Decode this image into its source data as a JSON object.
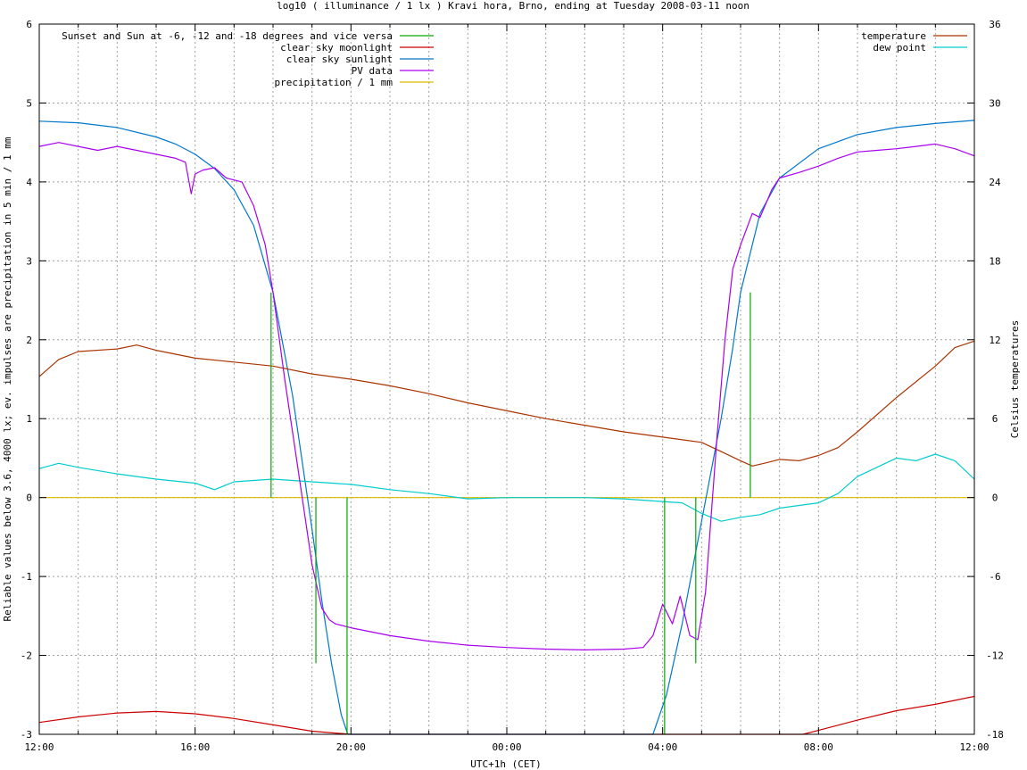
{
  "chart_data": {
    "type": "line",
    "title": "log10 ( illuminance / 1 lx ) Kravi hora, Brno, ending at Tuesday 2008-03-11 noon",
    "xlabel": "UTC+1h (CET)",
    "ylabel": "Reliable values below 3.6, 4000 lx; ev. impulses are precipitation in 5 min / 1 mm",
    "y2label": "Celsius temperatures",
    "xlim": [
      0,
      24
    ],
    "ylim": [
      -3,
      6
    ],
    "y2lim": [
      -18,
      36
    ],
    "x_ticks": [
      {
        "v": 0,
        "label": "12:00"
      },
      {
        "v": 4,
        "label": "16:00"
      },
      {
        "v": 8,
        "label": "20:00"
      },
      {
        "v": 12,
        "label": "00:00"
      },
      {
        "v": 16,
        "label": "04:00"
      },
      {
        "v": 20,
        "label": "08:00"
      },
      {
        "v": 24,
        "label": "12:00"
      }
    ],
    "y_ticks": [
      {
        "v": -3,
        "label": "-3"
      },
      {
        "v": -2,
        "label": "-2"
      },
      {
        "v": -1,
        "label": "-1"
      },
      {
        "v": 0,
        "label": "0"
      },
      {
        "v": 1,
        "label": "1"
      },
      {
        "v": 2,
        "label": "2"
      },
      {
        "v": 3,
        "label": "3"
      },
      {
        "v": 4,
        "label": "4"
      },
      {
        "v": 5,
        "label": "5"
      },
      {
        "v": 6,
        "label": "6"
      }
    ],
    "y2_ticks": [
      {
        "v": -18,
        "label": "-18"
      },
      {
        "v": -12,
        "label": "-12"
      },
      {
        "v": -6,
        "label": "-6"
      },
      {
        "v": 0,
        "label": "0"
      },
      {
        "v": 6,
        "label": "6"
      },
      {
        "v": 12,
        "label": "12"
      },
      {
        "v": 18,
        "label": "18"
      },
      {
        "v": 24,
        "label": "24"
      },
      {
        "v": 30,
        "label": "30"
      },
      {
        "v": 36,
        "label": "36"
      }
    ],
    "grid": true,
    "legend_left": [
      {
        "key": "sun",
        "label": "Sunset and Sun at -6, -12 and -18 degrees and vice versa",
        "color": "#00aa00"
      },
      {
        "key": "moon",
        "label": "clear sky moonlight",
        "color": "#cc0000"
      },
      {
        "key": "sunlight",
        "label": "clear sky sunlight",
        "color": "#0077cc"
      },
      {
        "key": "pv",
        "label": "PV data",
        "color": "#aa00ee"
      },
      {
        "key": "precip",
        "label": "precipitation / 1 mm",
        "color": "#ddbb00"
      }
    ],
    "legend_right": [
      {
        "key": "temp",
        "label": "temperature",
        "color": "#aa3300"
      },
      {
        "key": "dew",
        "label": "dew point",
        "color": "#00cccc"
      }
    ],
    "series": [
      {
        "key": "sunlight",
        "axis": "y",
        "color": "#0077cc",
        "x": [
          0,
          1,
          2,
          3,
          3.5,
          4,
          4.5,
          5,
          5.5,
          6,
          6.5,
          7,
          7.25,
          7.5,
          7.75,
          7.92,
          8.5,
          15.75,
          16.1,
          16.5,
          17,
          17.5,
          17.8,
          18,
          18.5,
          19,
          20,
          21,
          22,
          23,
          24
        ],
        "y": [
          4.77,
          4.75,
          4.69,
          4.57,
          4.48,
          4.35,
          4.17,
          3.9,
          3.45,
          2.6,
          1.3,
          -0.4,
          -1.3,
          -2.1,
          -2.75,
          -3.0,
          -3.0,
          -3.0,
          -2.5,
          -1.6,
          -0.3,
          1.0,
          1.9,
          2.6,
          3.6,
          4.05,
          4.42,
          4.6,
          4.69,
          4.74,
          4.78
        ]
      },
      {
        "key": "moon",
        "axis": "y",
        "color": "#cc0000",
        "x": [
          0,
          1,
          2,
          3,
          4,
          5,
          6,
          7,
          8,
          8.4,
          19.6,
          20,
          21,
          22,
          23,
          24
        ],
        "y": [
          -2.85,
          -2.78,
          -2.73,
          -2.71,
          -2.74,
          -2.8,
          -2.88,
          -2.96,
          -3.0,
          -3.0,
          -3.0,
          -2.95,
          -2.82,
          -2.7,
          -2.62,
          -2.52
        ]
      },
      {
        "key": "pv",
        "axis": "y",
        "color": "#aa00ee",
        "x": [
          0,
          0.5,
          1,
          1.5,
          2,
          2.5,
          3,
          3.5,
          3.75,
          3.9,
          4.0,
          4.2,
          4.5,
          4.8,
          5.2,
          5.5,
          5.8,
          6.0,
          6.3,
          6.6,
          7.0,
          7.25,
          7.45,
          7.6,
          8.0,
          8.5,
          9.0,
          10.0,
          11.0,
          12.0,
          13.0,
          14.0,
          15.0,
          15.5,
          15.75,
          16.0,
          16.25,
          16.45,
          16.7,
          16.9,
          17.1,
          17.4,
          17.6,
          17.8,
          18.0,
          18.3,
          18.5,
          18.8,
          19.0,
          19.5,
          20.0,
          20.5,
          21.0,
          21.5,
          22.0,
          22.5,
          23.0,
          23.5,
          24.0
        ],
        "y": [
          4.45,
          4.5,
          4.45,
          4.4,
          4.45,
          4.4,
          4.35,
          4.3,
          4.25,
          3.85,
          4.1,
          4.15,
          4.18,
          4.05,
          4.0,
          3.7,
          3.2,
          2.6,
          1.5,
          0.5,
          -0.85,
          -1.4,
          -1.55,
          -1.6,
          -1.65,
          -1.7,
          -1.75,
          -1.82,
          -1.87,
          -1.9,
          -1.92,
          -1.93,
          -1.92,
          -1.9,
          -1.75,
          -1.35,
          -1.6,
          -1.25,
          -1.75,
          -1.8,
          -1.2,
          0.8,
          2.0,
          2.9,
          3.2,
          3.6,
          3.55,
          3.9,
          4.05,
          4.12,
          4.2,
          4.3,
          4.38,
          4.4,
          4.42,
          4.45,
          4.48,
          4.42,
          4.33
        ]
      },
      {
        "key": "temp",
        "axis": "y2",
        "color": "#aa3300",
        "x": [
          0,
          0.5,
          1,
          2,
          2.5,
          3,
          3.5,
          4,
          5,
          6,
          7,
          8,
          9,
          10,
          11,
          12,
          13,
          14,
          15,
          16,
          17,
          17.5,
          18,
          18.3,
          18.6,
          19,
          19.5,
          20,
          20.5,
          21,
          22,
          23,
          23.5,
          24
        ],
        "y": [
          9.2,
          10.5,
          11.1,
          11.3,
          11.6,
          11.2,
          10.9,
          10.6,
          10.3,
          10.0,
          9.4,
          9.0,
          8.5,
          7.9,
          7.2,
          6.6,
          6.0,
          5.5,
          5.0,
          4.6,
          4.2,
          3.5,
          2.8,
          2.4,
          2.6,
          2.9,
          2.8,
          3.2,
          3.8,
          5.0,
          7.6,
          10.0,
          11.4,
          11.9
        ]
      },
      {
        "key": "dew",
        "axis": "y2",
        "color": "#00cccc",
        "x": [
          0,
          0.5,
          1,
          2,
          3,
          4,
          4.5,
          5,
          6,
          7,
          8,
          9,
          10,
          11,
          12,
          13,
          14,
          15,
          16,
          16.5,
          17,
          17.5,
          18,
          18.5,
          19,
          19.5,
          20,
          20.5,
          21,
          22,
          22.5,
          23,
          23.5,
          24
        ],
        "y": [
          2.2,
          2.6,
          2.3,
          1.8,
          1.4,
          1.1,
          0.6,
          1.2,
          1.4,
          1.2,
          1.0,
          0.6,
          0.3,
          -0.1,
          0.0,
          0.0,
          0.0,
          -0.1,
          -0.3,
          -0.4,
          -1.2,
          -1.8,
          -1.5,
          -1.3,
          -0.8,
          -0.6,
          -0.4,
          0.3,
          1.6,
          3.0,
          2.8,
          3.3,
          2.8,
          1.4
        ]
      },
      {
        "key": "precip",
        "axis": "y",
        "color": "#ddbb00",
        "x": [
          0,
          24
        ],
        "y": [
          0,
          0
        ]
      }
    ],
    "impulses": {
      "color": "#00aa00",
      "x": [
        5.95,
        7.1,
        7.9,
        16.05,
        16.85,
        18.25
      ],
      "y": [
        2.6,
        -2.1,
        -3.0,
        -3.0,
        -2.1,
        2.6
      ]
    }
  }
}
